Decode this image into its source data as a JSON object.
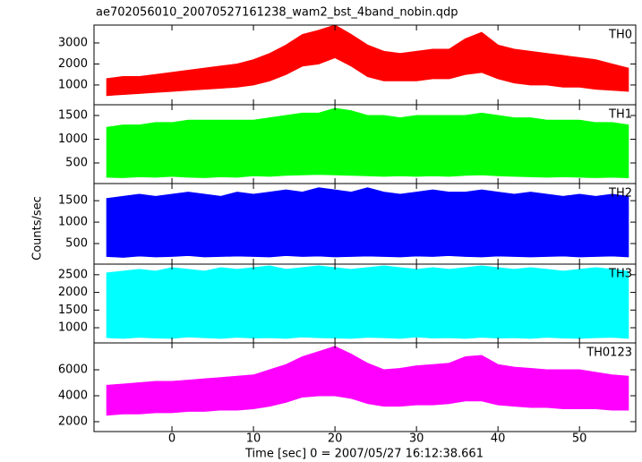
{
  "chart_data": [
    {
      "type": "range",
      "title": "ae702056010_20070527161238_wam2_bst_4band_nobin.qdp",
      "label": "TH0",
      "color": "#ff0000",
      "x": [
        -8,
        -6,
        -4,
        -2,
        0,
        2,
        4,
        6,
        8,
        10,
        12,
        14,
        16,
        18,
        20,
        22,
        24,
        26,
        28,
        30,
        32,
        34,
        36,
        38,
        40,
        42,
        44,
        46,
        48,
        50,
        52,
        54,
        56
      ],
      "low": [
        500,
        550,
        600,
        650,
        700,
        750,
        800,
        850,
        900,
        1000,
        1200,
        1500,
        1900,
        2000,
        2300,
        1900,
        1400,
        1200,
        1200,
        1200,
        1300,
        1300,
        1500,
        1600,
        1300,
        1100,
        1000,
        1000,
        900,
        900,
        800,
        750,
        700
      ],
      "high": [
        1300,
        1400,
        1400,
        1500,
        1600,
        1700,
        1800,
        1900,
        2000,
        2200,
        2500,
        2900,
        3400,
        3600,
        3850,
        3400,
        2900,
        2600,
        2500,
        2600,
        2700,
        2700,
        3200,
        3500,
        2900,
        2700,
        2600,
        2500,
        2400,
        2300,
        2200,
        2000,
        1800
      ],
      "ylim": [
        60,
        3850
      ],
      "yticks": [
        1000,
        2000,
        3000
      ]
    },
    {
      "type": "range",
      "label": "TH1",
      "color": "#00ff00",
      "x": [
        -8,
        -6,
        -4,
        -2,
        0,
        2,
        4,
        6,
        8,
        10,
        12,
        14,
        16,
        18,
        20,
        22,
        24,
        26,
        28,
        30,
        32,
        34,
        36,
        38,
        40,
        42,
        44,
        46,
        48,
        50,
        52,
        54,
        56
      ],
      "low": [
        200,
        190,
        210,
        200,
        220,
        200,
        190,
        210,
        200,
        230,
        220,
        240,
        250,
        260,
        250,
        240,
        230,
        220,
        230,
        220,
        230,
        220,
        240,
        250,
        230,
        220,
        210,
        200,
        210,
        200,
        190,
        200,
        190
      ],
      "high": [
        1250,
        1300,
        1300,
        1350,
        1350,
        1400,
        1400,
        1400,
        1400,
        1400,
        1450,
        1500,
        1550,
        1550,
        1650,
        1600,
        1500,
        1500,
        1450,
        1500,
        1500,
        1500,
        1500,
        1550,
        1500,
        1450,
        1450,
        1400,
        1400,
        1400,
        1350,
        1350,
        1300
      ],
      "ylim": [
        66,
        1726
      ],
      "yticks": [
        500,
        1000,
        1500
      ]
    },
    {
      "type": "range",
      "label": "TH2",
      "color": "#0000ff",
      "ylabel": "Counts/sec",
      "x": [
        -8,
        -6,
        -4,
        -2,
        0,
        2,
        4,
        6,
        8,
        10,
        12,
        14,
        16,
        18,
        20,
        22,
        24,
        26,
        28,
        30,
        32,
        34,
        36,
        38,
        40,
        42,
        44,
        46,
        48,
        50,
        52,
        54,
        56
      ],
      "low": [
        200,
        180,
        210,
        190,
        200,
        220,
        190,
        200,
        210,
        200,
        190,
        220,
        200,
        210,
        190,
        200,
        210,
        200,
        190,
        210,
        200,
        220,
        200,
        190,
        210,
        200,
        190,
        200,
        210,
        190,
        200,
        210,
        190
      ],
      "high": [
        1550,
        1600,
        1650,
        1600,
        1650,
        1700,
        1650,
        1600,
        1700,
        1650,
        1700,
        1750,
        1700,
        1800,
        1750,
        1700,
        1800,
        1700,
        1650,
        1700,
        1750,
        1700,
        1700,
        1750,
        1700,
        1650,
        1700,
        1650,
        1600,
        1650,
        1600,
        1650,
        1600
      ],
      "ylim": [
        20,
        1900
      ],
      "yticks": [
        500,
        1000,
        1500
      ]
    },
    {
      "type": "range",
      "label": "TH3",
      "color": "#00ffff",
      "x": [
        -8,
        -6,
        -4,
        -2,
        0,
        2,
        4,
        6,
        8,
        10,
        12,
        14,
        16,
        18,
        20,
        22,
        24,
        26,
        28,
        30,
        32,
        34,
        36,
        38,
        40,
        42,
        44,
        46,
        48,
        50,
        52,
        54,
        56
      ],
      "low": [
        720,
        700,
        730,
        710,
        700,
        740,
        720,
        700,
        730,
        710,
        720,
        700,
        740,
        720,
        710,
        700,
        730,
        720,
        700,
        740,
        710,
        720,
        700,
        730,
        710,
        720,
        700,
        730,
        710,
        700,
        720,
        730,
        700
      ],
      "high": [
        2550,
        2600,
        2650,
        2600,
        2700,
        2650,
        2600,
        2700,
        2650,
        2700,
        2750,
        2650,
        2700,
        2750,
        2700,
        2650,
        2700,
        2750,
        2700,
        2650,
        2700,
        2650,
        2700,
        2750,
        2700,
        2650,
        2700,
        2650,
        2600,
        2650,
        2700,
        2650,
        2600
      ],
      "ylim": [
        570,
        2800
      ],
      "yticks": [
        1000,
        1500,
        2000,
        2500
      ]
    },
    {
      "type": "range",
      "label": "TH0123",
      "color": "#ff00ff",
      "xlabel": "Time [sec] 0 = 2007/05/27 16:12:38.661",
      "x": [
        -8,
        -6,
        -4,
        -2,
        0,
        2,
        4,
        6,
        8,
        10,
        12,
        14,
        16,
        18,
        20,
        22,
        24,
        26,
        28,
        30,
        32,
        34,
        36,
        38,
        40,
        42,
        44,
        46,
        48,
        50,
        52,
        54,
        56
      ],
      "low": [
        2500,
        2600,
        2600,
        2700,
        2700,
        2800,
        2800,
        2900,
        2900,
        3000,
        3200,
        3500,
        3900,
        4000,
        4000,
        3800,
        3400,
        3200,
        3200,
        3300,
        3300,
        3400,
        3600,
        3600,
        3300,
        3200,
        3100,
        3100,
        3000,
        3000,
        3000,
        2900,
        2900
      ],
      "high": [
        4800,
        4900,
        5000,
        5100,
        5100,
        5200,
        5300,
        5400,
        5500,
        5600,
        6000,
        6400,
        7000,
        7400,
        7800,
        7200,
        6500,
        6000,
        6100,
        6300,
        6400,
        6500,
        7000,
        7100,
        6400,
        6200,
        6100,
        6000,
        6000,
        6000,
        5800,
        5600,
        5500
      ],
      "ylim": [
        1240,
        8070
      ],
      "yticks": [
        2000,
        4000,
        6000
      ],
      "xlim": [
        -9.56,
        56.9
      ],
      "xticks": [
        0,
        10,
        20,
        30,
        40,
        50
      ]
    }
  ]
}
